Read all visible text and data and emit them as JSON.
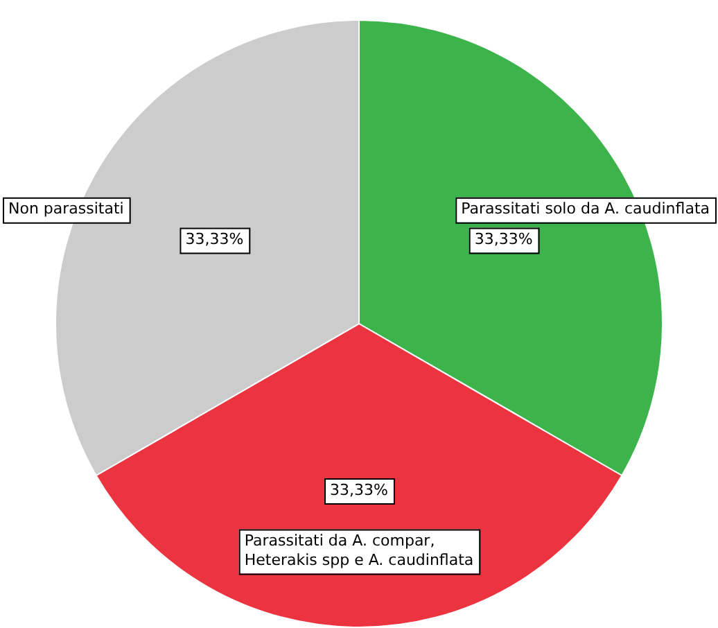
{
  "chart_data": {
    "type": "pie",
    "categories": [
      "Parassitati solo da A. caudinflata",
      "Parassitati da A. compar, Heterakis spp e A. caudinflata",
      "Non parassitati"
    ],
    "values": [
      33.33,
      33.33,
      33.33
    ],
    "colors": [
      "#3cb44b",
      "#ec3440",
      "#cccccc"
    ],
    "value_labels": [
      "33,33%",
      "33,33%",
      "33,33%"
    ]
  }
}
